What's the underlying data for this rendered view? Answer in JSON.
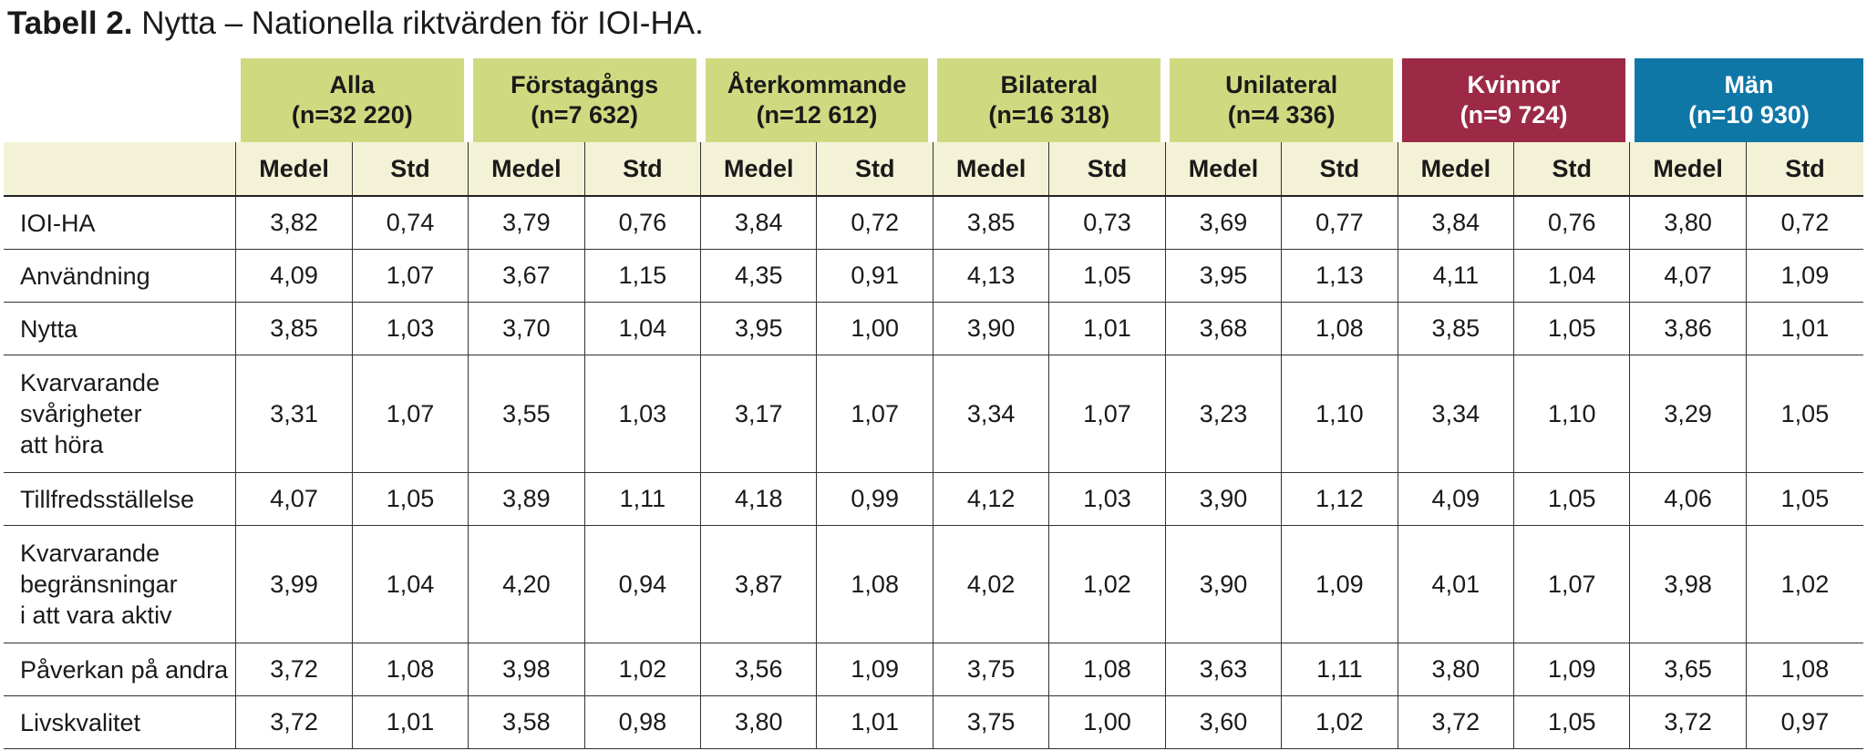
{
  "title": {
    "bold": "Tabell 2.",
    "rest": " Nytta – Nationella riktvärden för IOI-HA."
  },
  "colors": {
    "green_header": "#cfda80",
    "subheader_bg": "#f3f2d6",
    "kvinnor_header": "#9c2a47",
    "man_header": "#0f77a6"
  },
  "groups": [
    {
      "name": "Alla",
      "n": "(n=32 220)"
    },
    {
      "name": "Förstagångs",
      "n": "(n=7 632)"
    },
    {
      "name": "Återkommande",
      "n": "(n=12 612)"
    },
    {
      "name": "Bilateral",
      "n": "(n=16 318)"
    },
    {
      "name": "Unilateral",
      "n": "(n=4 336)"
    },
    {
      "name": "Kvinnor",
      "n": "(n=9 724)"
    },
    {
      "name": "Män",
      "n": "(n=10 930)"
    }
  ],
  "subheaders": {
    "mean": "Medel",
    "std": "Std"
  },
  "rows": [
    {
      "label": [
        "IOI-HA"
      ],
      "values": [
        "3,82",
        "0,74",
        "3,79",
        "0,76",
        "3,84",
        "0,72",
        "3,85",
        "0,73",
        "3,69",
        "0,77",
        "3,84",
        "0,76",
        "3,80",
        "0,72"
      ]
    },
    {
      "label": [
        "Användning"
      ],
      "values": [
        "4,09",
        "1,07",
        "3,67",
        "1,15",
        "4,35",
        "0,91",
        "4,13",
        "1,05",
        "3,95",
        "1,13",
        "4,11",
        "1,04",
        "4,07",
        "1,09"
      ]
    },
    {
      "label": [
        "Nytta"
      ],
      "values": [
        "3,85",
        "1,03",
        "3,70",
        "1,04",
        "3,95",
        "1,00",
        "3,90",
        "1,01",
        "3,68",
        "1,08",
        "3,85",
        "1,05",
        "3,86",
        "1,01"
      ]
    },
    {
      "label": [
        "Kvarvarande",
        "svårigheter",
        "att höra"
      ],
      "values": [
        "3,31",
        "1,07",
        "3,55",
        "1,03",
        "3,17",
        "1,07",
        "3,34",
        "1,07",
        "3,23",
        "1,10",
        "3,34",
        "1,10",
        "3,29",
        "1,05"
      ]
    },
    {
      "label": [
        "Tillfredsställelse"
      ],
      "values": [
        "4,07",
        "1,05",
        "3,89",
        "1,11",
        "4,18",
        "0,99",
        "4,12",
        "1,03",
        "3,90",
        "1,12",
        "4,09",
        "1,05",
        "4,06",
        "1,05"
      ]
    },
    {
      "label": [
        "Kvarvarande",
        "begränsningar",
        "i att vara aktiv"
      ],
      "values": [
        "3,99",
        "1,04",
        "4,20",
        "0,94",
        "3,87",
        "1,08",
        "4,02",
        "1,02",
        "3,90",
        "1,09",
        "4,01",
        "1,07",
        "3,98",
        "1,02"
      ]
    },
    {
      "label": [
        "Påverkan på andra"
      ],
      "values": [
        "3,72",
        "1,08",
        "3,98",
        "1,02",
        "3,56",
        "1,09",
        "3,75",
        "1,08",
        "3,63",
        "1,11",
        "3,80",
        "1,09",
        "3,65",
        "1,08"
      ]
    },
    {
      "label": [
        "Livskvalitet"
      ],
      "values": [
        "3,72",
        "1,01",
        "3,58",
        "0,98",
        "3,80",
        "1,01",
        "3,75",
        "1,00",
        "3,60",
        "1,02",
        "3,72",
        "1,05",
        "3,72",
        "0,97"
      ]
    }
  ]
}
